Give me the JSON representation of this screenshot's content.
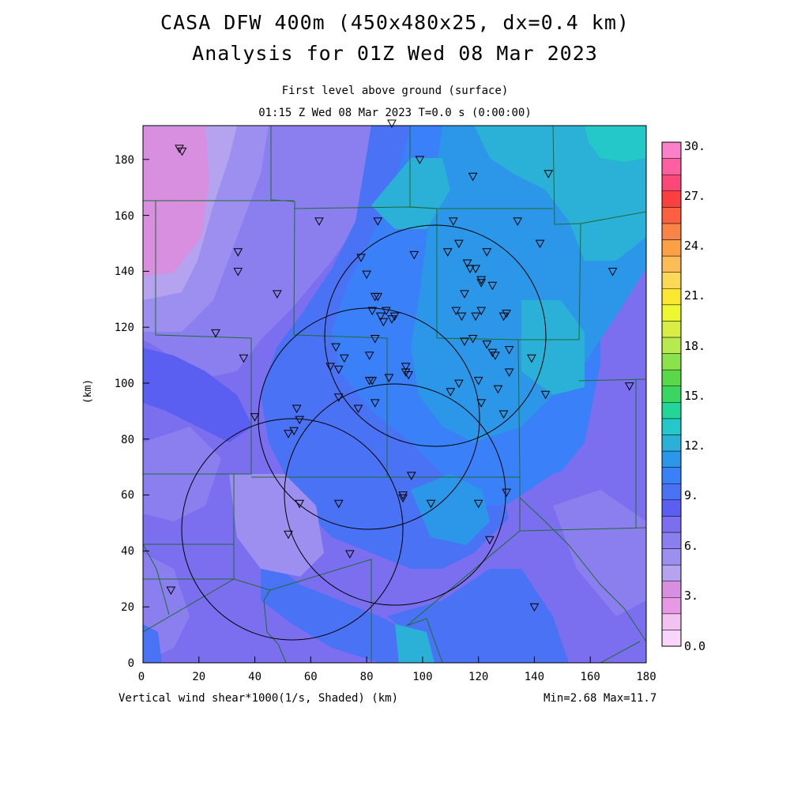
{
  "title_line1": "CASA DFW 400m (450x480x25, dx=0.4 km)",
  "title_line2": "Analysis for 01Z Wed 08 Mar 2023",
  "subtitle_line1": "First level above ground (surface)",
  "subtitle_line2": "01:15 Z Wed 08 Mar 2023   T=0.0 s (0:00:00)",
  "footer_left": "Vertical wind shear*1000(1/s, Shaded)  (km)",
  "footer_right": "Min=2.68 Max=11.7",
  "y_axis_label": "(km)",
  "x_ticks": [
    "0",
    "20",
    "40",
    "60",
    "80",
    "100",
    "120",
    "140",
    "160",
    "180"
  ],
  "y_ticks": [
    "0",
    "20",
    "40",
    "60",
    "80",
    "100",
    "120",
    "140",
    "160",
    "180"
  ],
  "colorbar": {
    "labels": [
      "0.0",
      "3.",
      "6.",
      "9.",
      "12.",
      "15.",
      "18.",
      "21.",
      "24.",
      "27.",
      "30."
    ],
    "colors": [
      "#f9d6f9",
      "#f2c2f0",
      "#e79ae3",
      "#d88fe0",
      "#b6a3f0",
      "#9c8ff0",
      "#8b7ff0",
      "#7b6ff0",
      "#5a5ff2",
      "#4a72f4",
      "#3a80f8",
      "#2c96e8",
      "#2bb0d8",
      "#25c8c8",
      "#22d69a",
      "#3ad660",
      "#59d84a",
      "#8ae24c",
      "#b6ea4e",
      "#d8ee44",
      "#eef830",
      "#fce830",
      "#fcd858",
      "#fcbc58",
      "#fca048",
      "#f88448",
      "#fc6040",
      "#fc4040",
      "#fc4878",
      "#fc60a0",
      "#fc80c8"
    ]
  },
  "stations": [
    [
      13,
      184
    ],
    [
      14,
      183
    ],
    [
      89,
      193
    ],
    [
      99,
      180
    ],
    [
      118,
      174
    ],
    [
      145,
      175
    ],
    [
      63,
      158
    ],
    [
      84,
      158
    ],
    [
      111,
      158
    ],
    [
      34,
      147
    ],
    [
      34,
      140
    ],
    [
      48,
      132
    ],
    [
      78,
      145
    ],
    [
      80,
      139
    ],
    [
      97,
      146
    ],
    [
      113,
      150
    ],
    [
      116,
      143
    ],
    [
      123,
      147
    ],
    [
      134,
      158
    ],
    [
      142,
      150
    ],
    [
      109,
      147
    ],
    [
      117,
      141
    ],
    [
      119,
      141
    ],
    [
      121,
      137
    ],
    [
      125,
      135
    ],
    [
      121,
      136
    ],
    [
      115,
      132
    ],
    [
      83,
      131
    ],
    [
      84,
      131
    ],
    [
      87,
      126
    ],
    [
      89,
      123
    ],
    [
      82,
      126
    ],
    [
      85,
      124
    ],
    [
      86,
      122
    ],
    [
      90,
      124
    ],
    [
      112,
      126
    ],
    [
      114,
      124
    ],
    [
      119,
      124
    ],
    [
      121,
      126
    ],
    [
      129,
      124
    ],
    [
      130,
      125
    ],
    [
      168,
      140
    ],
    [
      26,
      118
    ],
    [
      36,
      109
    ],
    [
      83,
      116
    ],
    [
      69,
      113
    ],
    [
      72,
      109
    ],
    [
      67,
      106
    ],
    [
      70,
      105
    ],
    [
      81,
      110
    ],
    [
      88,
      102
    ],
    [
      81,
      101
    ],
    [
      82,
      101
    ],
    [
      94,
      106
    ],
    [
      94,
      104
    ],
    [
      95,
      103
    ],
    [
      115,
      115
    ],
    [
      118,
      116
    ],
    [
      123,
      114
    ],
    [
      125,
      111
    ],
    [
      131,
      112
    ],
    [
      126,
      110
    ],
    [
      139,
      109
    ],
    [
      144,
      96
    ],
    [
      131,
      104
    ],
    [
      113,
      100
    ],
    [
      110,
      97
    ],
    [
      120,
      101
    ],
    [
      121,
      93
    ],
    [
      127,
      98
    ],
    [
      129,
      89
    ],
    [
      70,
      95
    ],
    [
      77,
      91
    ],
    [
      83,
      93
    ],
    [
      55,
      91
    ],
    [
      56,
      87
    ],
    [
      54,
      83
    ],
    [
      52,
      82
    ],
    [
      40,
      88
    ],
    [
      96,
      67
    ],
    [
      93,
      60
    ],
    [
      93,
      59
    ],
    [
      103,
      57
    ],
    [
      56,
      57
    ],
    [
      70,
      57
    ],
    [
      52,
      46
    ],
    [
      74,
      39
    ],
    [
      120,
      57
    ],
    [
      130,
      61
    ],
    [
      124,
      44
    ],
    [
      10,
      26
    ],
    [
      140,
      20
    ],
    [
      174,
      99
    ]
  ]
}
